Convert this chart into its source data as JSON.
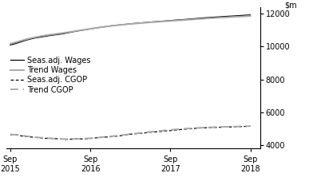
{
  "ylim": [
    3800,
    12400
  ],
  "yticks": [
    4000,
    6000,
    8000,
    10000,
    12000
  ],
  "xtick_labels": [
    "Sep\n2015",
    "Sep\n2016",
    "Sep\n2017",
    "Sep\n2018"
  ],
  "seas_wages": [
    10100,
    10180,
    10280,
    10380,
    10460,
    10530,
    10580,
    10630,
    10680,
    10720,
    10760,
    10810,
    10870,
    10930,
    10980,
    11030,
    11080,
    11130,
    11175,
    11220,
    11260,
    11295,
    11330,
    11360,
    11390,
    11420,
    11445,
    11470,
    11495,
    11520,
    11545,
    11565,
    11590,
    11615,
    11638,
    11660,
    11685,
    11710,
    11735,
    11760,
    11780,
    11800,
    11820,
    11840,
    11858,
    11875,
    11895,
    11915,
    11930
  ],
  "trend_wages": [
    10180,
    10260,
    10350,
    10435,
    10510,
    10575,
    10635,
    10685,
    10730,
    10770,
    10810,
    10855,
    10900,
    10950,
    10998,
    11045,
    11090,
    11135,
    11178,
    11218,
    11255,
    11290,
    11322,
    11352,
    11380,
    11408,
    11432,
    11455,
    11478,
    11500,
    11522,
    11542,
    11565,
    11585,
    11605,
    11625,
    11645,
    11668,
    11690,
    11710,
    11730,
    11748,
    11766,
    11783,
    11800,
    11817,
    11833,
    11848,
    11862
  ],
  "seas_cgop": [
    4620,
    4660,
    4570,
    4530,
    4500,
    4470,
    4440,
    4415,
    4420,
    4395,
    4375,
    4355,
    4360,
    4390,
    4382,
    4372,
    4410,
    4440,
    4470,
    4490,
    4510,
    4535,
    4572,
    4618,
    4665,
    4695,
    4718,
    4748,
    4788,
    4808,
    4828,
    4858,
    4888,
    4918,
    4948,
    4975,
    4998,
    5025,
    5045,
    5058,
    5068,
    5078,
    5090,
    5100,
    5110,
    5120,
    5130,
    5142,
    5152
  ],
  "trend_cgop": [
    4650,
    4632,
    4596,
    4558,
    4522,
    4488,
    4458,
    4432,
    4410,
    4390,
    4375,
    4367,
    4367,
    4374,
    4385,
    4400,
    4420,
    4445,
    4472,
    4502,
    4534,
    4568,
    4602,
    4638,
    4674,
    4710,
    4744,
    4777,
    4810,
    4842,
    4872,
    4902,
    4930,
    4957,
    4982,
    5004,
    5024,
    5044,
    5060,
    5074,
    5086,
    5097,
    5107,
    5117,
    5126,
    5134,
    5142,
    5150,
    5157
  ],
  "seas_wages_color": "#000000",
  "trend_wages_color": "#aaaaaa",
  "seas_cgop_color": "#000000",
  "trend_cgop_color": "#aaaaaa",
  "background_color": "#ffffff",
  "legend_labels": [
    "Seas.adj. Wages",
    "Trend Wages",
    "Seas.adj. CGOP",
    "Trend CGOP"
  ],
  "tick_fontsize": 7,
  "legend_fontsize": 7
}
